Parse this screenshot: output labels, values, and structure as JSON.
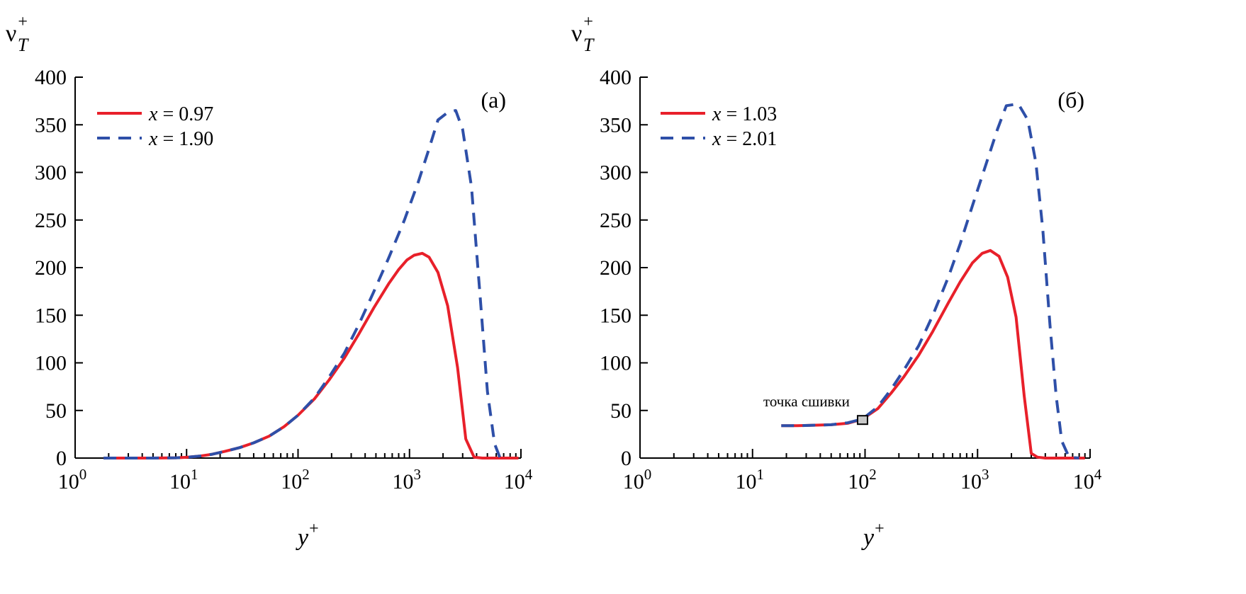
{
  "chart_data": [
    {
      "type": "line",
      "panel_label": "(a)",
      "ylabel_main": "ν",
      "ylabel_sub": "T",
      "ylabel_sup": "+",
      "xlabel_main": "y",
      "xlabel_sup": "+",
      "xscale": "log",
      "xlim": [
        1,
        10000
      ],
      "ylim": [
        0,
        400
      ],
      "xticks": [
        {
          "base": "10",
          "exp": "0",
          "value": 1
        },
        {
          "base": "10",
          "exp": "1",
          "value": 10
        },
        {
          "base": "10",
          "exp": "2",
          "value": 100
        },
        {
          "base": "10",
          "exp": "3",
          "value": 1000
        },
        {
          "base": "10",
          "exp": "4",
          "value": 10000
        }
      ],
      "yticks": [
        "0",
        "50",
        "100",
        "150",
        "200",
        "250",
        "300",
        "350",
        "400"
      ],
      "grid": false,
      "legend_position": "top-left",
      "series": [
        {
          "var": "x",
          "eq": "= 0.97",
          "style": "solid",
          "color": "#e8202a",
          "x": [
            1.8,
            3,
            5,
            8,
            10,
            13,
            17,
            22,
            30,
            40,
            55,
            75,
            100,
            140,
            190,
            260,
            350,
            480,
            650,
            800,
            950,
            1100,
            1300,
            1500,
            1800,
            2200,
            2700,
            3200,
            3800,
            4500,
            6000,
            8000,
            9500
          ],
          "y": [
            0,
            0,
            0,
            0.3,
            0.8,
            2,
            4,
            7,
            11,
            16,
            23,
            33,
            45,
            62,
            82,
            105,
            130,
            158,
            183,
            198,
            208,
            213,
            215,
            211,
            195,
            160,
            95,
            20,
            1,
            0,
            0,
            0,
            0
          ]
        },
        {
          "var": "x",
          "eq": "= 1.90",
          "style": "dashed",
          "color": "#2e4fa8",
          "x": [
            1.8,
            3,
            5,
            8,
            10,
            13,
            17,
            22,
            30,
            40,
            55,
            75,
            100,
            140,
            190,
            260,
            350,
            480,
            650,
            900,
            1200,
            1500,
            1800,
            2200,
            2600,
            3000,
            3600,
            4300,
            5000,
            5800,
            6500
          ],
          "y": [
            0,
            0,
            0,
            0.3,
            0.8,
            2,
            4,
            7,
            11,
            16,
            23,
            33,
            45,
            63,
            85,
            110,
            140,
            175,
            210,
            250,
            290,
            325,
            355,
            363,
            365,
            345,
            285,
            170,
            70,
            15,
            0
          ]
        }
      ]
    },
    {
      "type": "line",
      "panel_label": "(б)",
      "ylabel_main": "ν",
      "ylabel_sub": "T",
      "ylabel_sup": "+",
      "xlabel_main": "y",
      "xlabel_sup": "+",
      "xscale": "log",
      "xlim": [
        1,
        10000
      ],
      "ylim": [
        0,
        400
      ],
      "xticks": [
        {
          "base": "10",
          "exp": "0",
          "value": 1
        },
        {
          "base": "10",
          "exp": "1",
          "value": 10
        },
        {
          "base": "10",
          "exp": "2",
          "value": 100
        },
        {
          "base": "10",
          "exp": "3",
          "value": 1000
        },
        {
          "base": "10",
          "exp": "4",
          "value": 10000
        }
      ],
      "yticks": [
        "0",
        "50",
        "100",
        "150",
        "200",
        "250",
        "300",
        "350",
        "400"
      ],
      "grid": false,
      "legend_position": "top-left",
      "annotation": {
        "text": "точка сшивки",
        "x": 95,
        "y": 40
      },
      "series": [
        {
          "var": "x",
          "eq": "= 1.03",
          "style": "solid",
          "color": "#e8202a",
          "x": [
            18,
            25,
            35,
            50,
            70,
            95,
            130,
            170,
            220,
            300,
            400,
            550,
            700,
            900,
            1100,
            1300,
            1550,
            1850,
            2200,
            2600,
            3000,
            3400,
            4000,
            5000,
            7000,
            9000
          ],
          "y": [
            34,
            34,
            34.5,
            35,
            36.5,
            41,
            52,
            68,
            85,
            108,
            133,
            163,
            185,
            205,
            215,
            218,
            212,
            190,
            148,
            65,
            5,
            1,
            0,
            0,
            0,
            0
          ]
        },
        {
          "var": "x",
          "eq": "= 2.01",
          "style": "dashed",
          "color": "#2e4fa8",
          "x": [
            18,
            25,
            35,
            50,
            70,
            95,
            130,
            170,
            220,
            300,
            400,
            550,
            700,
            900,
            1200,
            1500,
            1800,
            2300,
            2800,
            3300,
            3800,
            4400,
            5000,
            5600,
            6500,
            8000
          ],
          "y": [
            34,
            34,
            34.5,
            35,
            37,
            41,
            54,
            72,
            92,
            118,
            150,
            190,
            225,
            265,
            310,
            345,
            370,
            372,
            355,
            310,
            240,
            140,
            65,
            18,
            1,
            0
          ]
        }
      ]
    }
  ]
}
